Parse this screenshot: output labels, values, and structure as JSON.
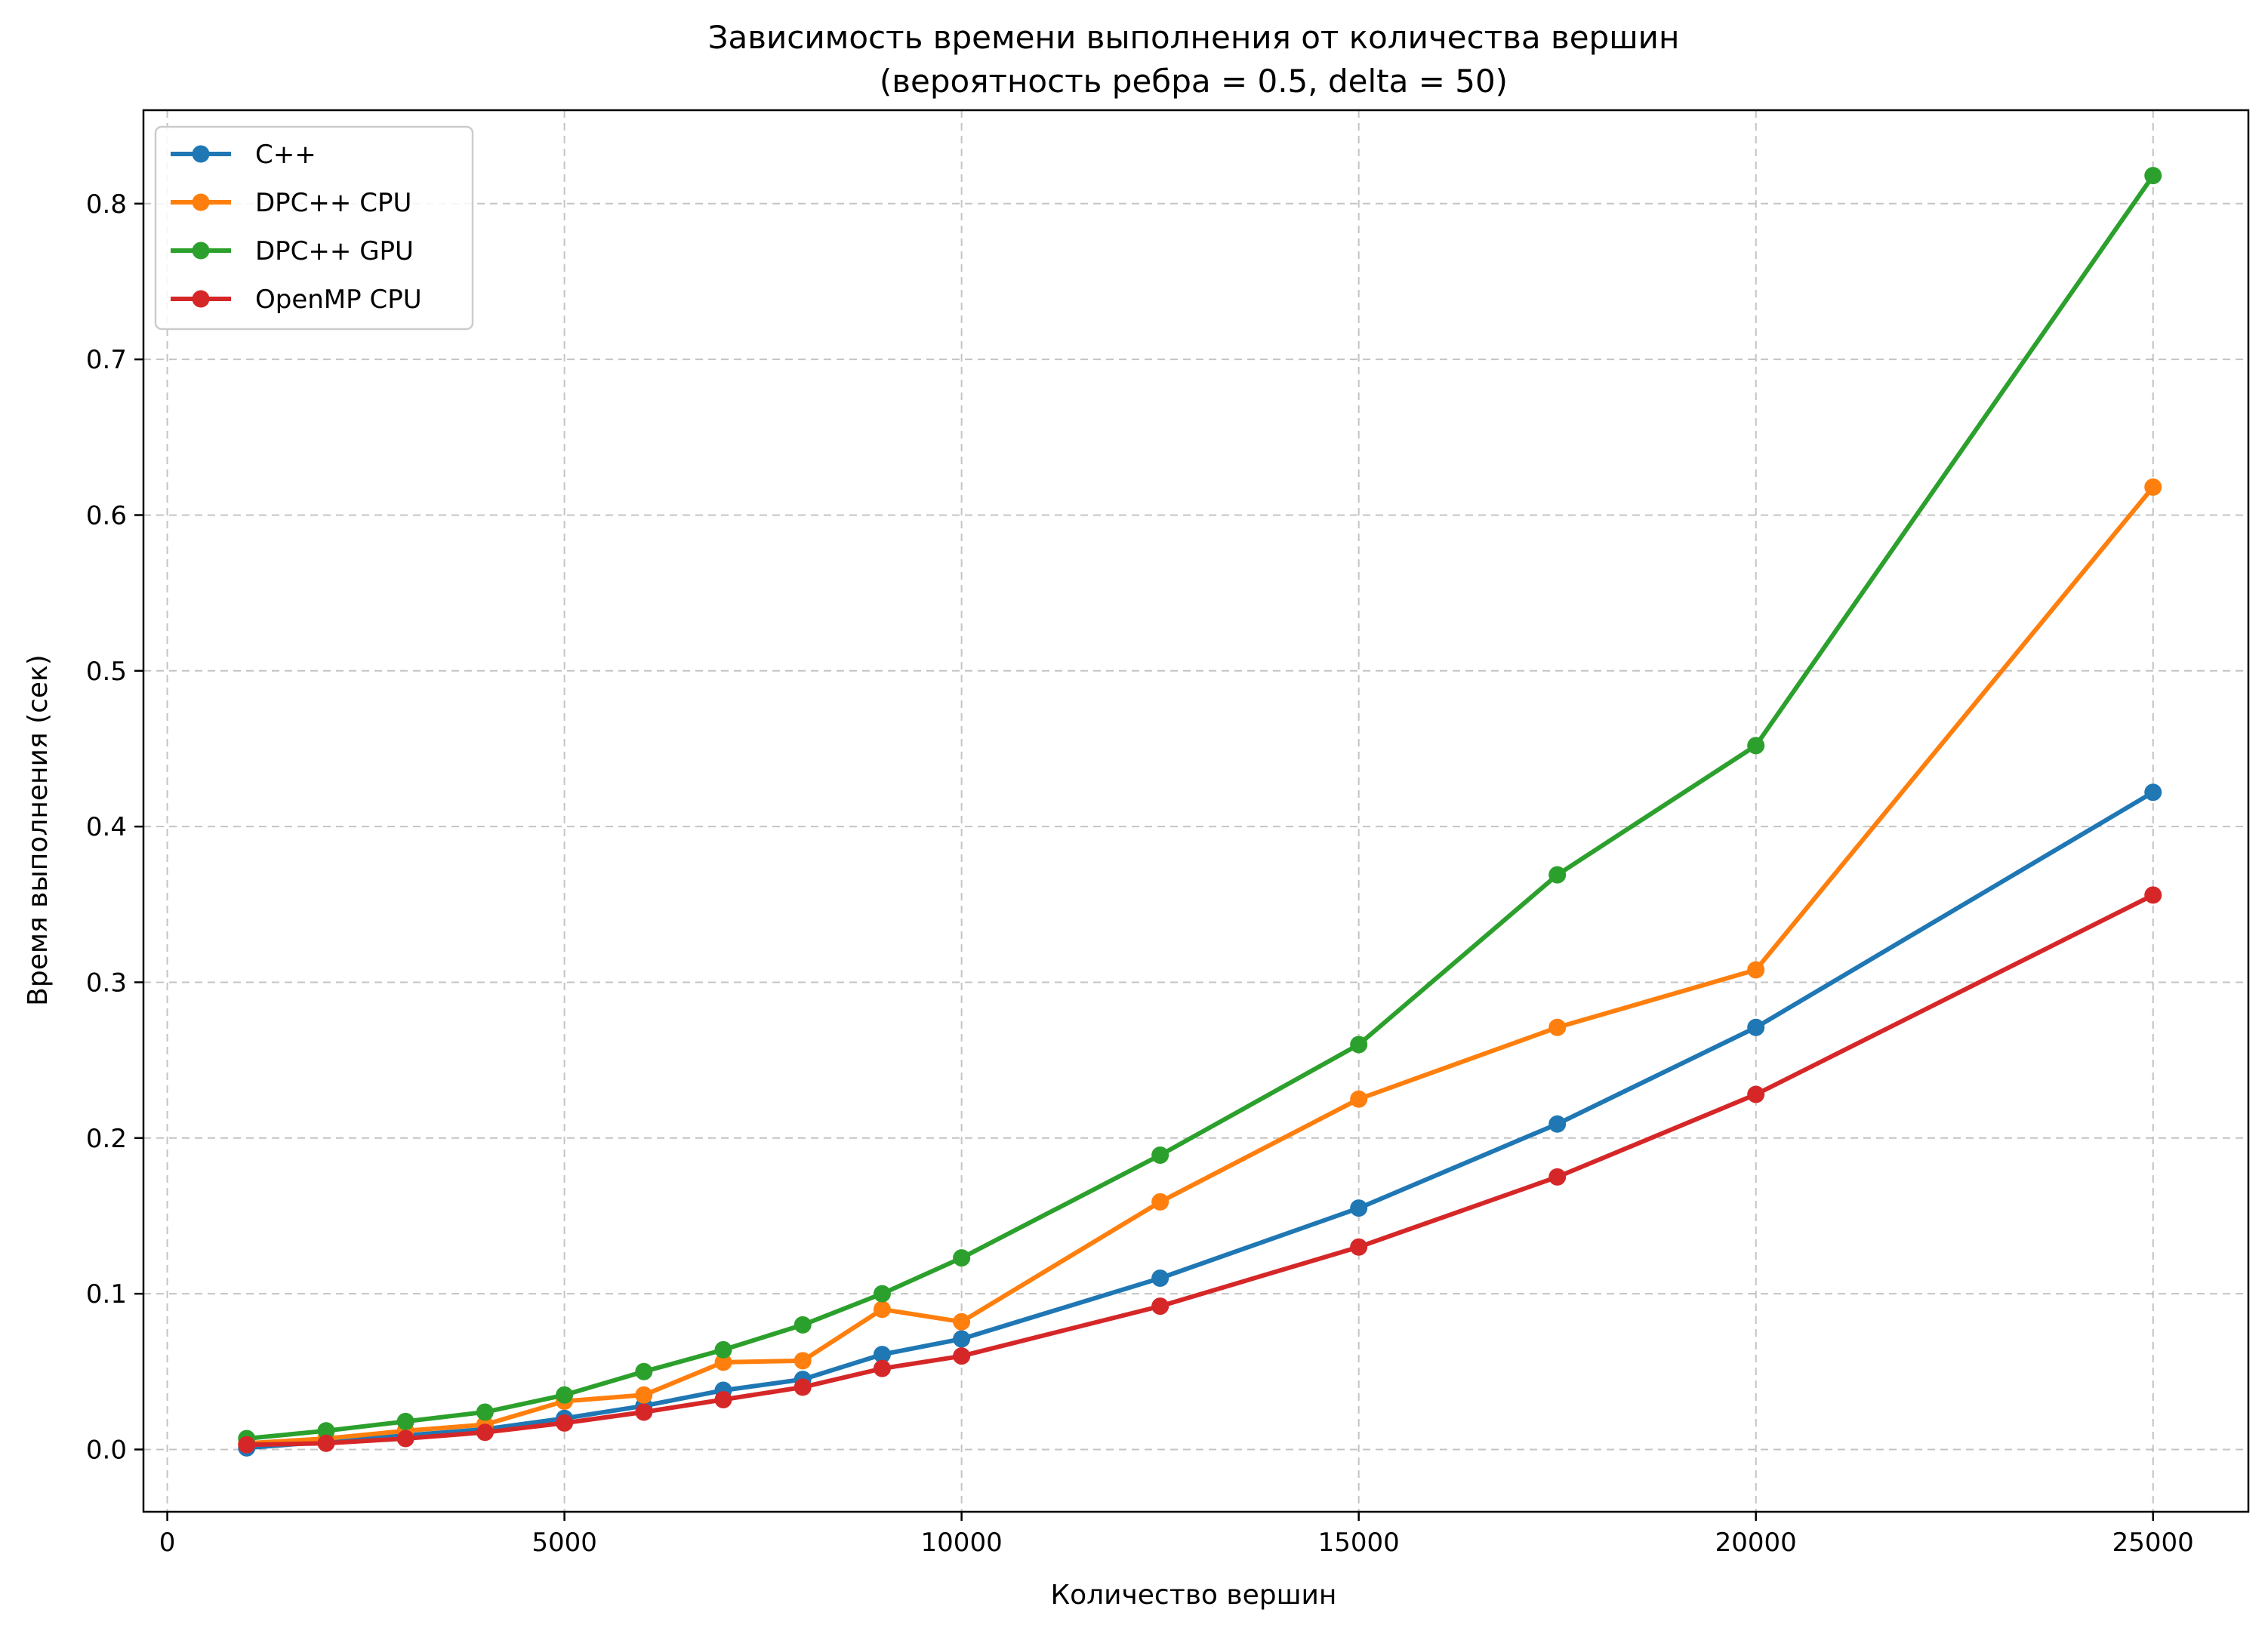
{
  "chart_data": {
    "type": "line",
    "title": "Зависимость времени выполнения от количества вершин",
    "subtitle": "(вероятность ребра = 0.5, delta = 50)",
    "xlabel": "Количество вершин",
    "ylabel": "Время выполнения (сек)",
    "xlim": [
      -300,
      26200
    ],
    "ylim": [
      -0.04,
      0.86
    ],
    "xticks": [
      0,
      5000,
      10000,
      15000,
      20000,
      25000
    ],
    "yticks": [
      0.0,
      0.1,
      0.2,
      0.3,
      0.4,
      0.5,
      0.6,
      0.7,
      0.8
    ],
    "grid": true,
    "legend_position": "top-left",
    "x": [
      1000,
      2000,
      3000,
      4000,
      5000,
      6000,
      7000,
      8000,
      9000,
      10000,
      12500,
      15000,
      17500,
      20000,
      25000
    ],
    "series": [
      {
        "name": "C++",
        "color": "#1f77b4",
        "values": [
          0.001,
          0.005,
          0.009,
          0.013,
          0.02,
          0.028,
          0.038,
          0.045,
          0.061,
          0.071,
          0.11,
          0.155,
          0.209,
          0.271,
          0.422
        ]
      },
      {
        "name": "DPC++ CPU",
        "color": "#ff7f0e",
        "values": [
          0.004,
          0.007,
          0.012,
          0.016,
          0.031,
          0.035,
          0.056,
          0.057,
          0.09,
          0.082,
          0.159,
          0.225,
          0.271,
          0.308,
          0.618
        ]
      },
      {
        "name": "DPC++ GPU",
        "color": "#2ca02c",
        "values": [
          0.007,
          0.012,
          0.018,
          0.024,
          0.035,
          0.05,
          0.064,
          0.08,
          0.1,
          0.123,
          0.189,
          0.26,
          0.369,
          0.452,
          0.818
        ]
      },
      {
        "name": "OpenMP CPU",
        "color": "#d62728",
        "values": [
          0.003,
          0.004,
          0.007,
          0.011,
          0.017,
          0.024,
          0.032,
          0.04,
          0.052,
          0.06,
          0.092,
          0.13,
          0.175,
          0.228,
          0.356
        ]
      }
    ]
  }
}
